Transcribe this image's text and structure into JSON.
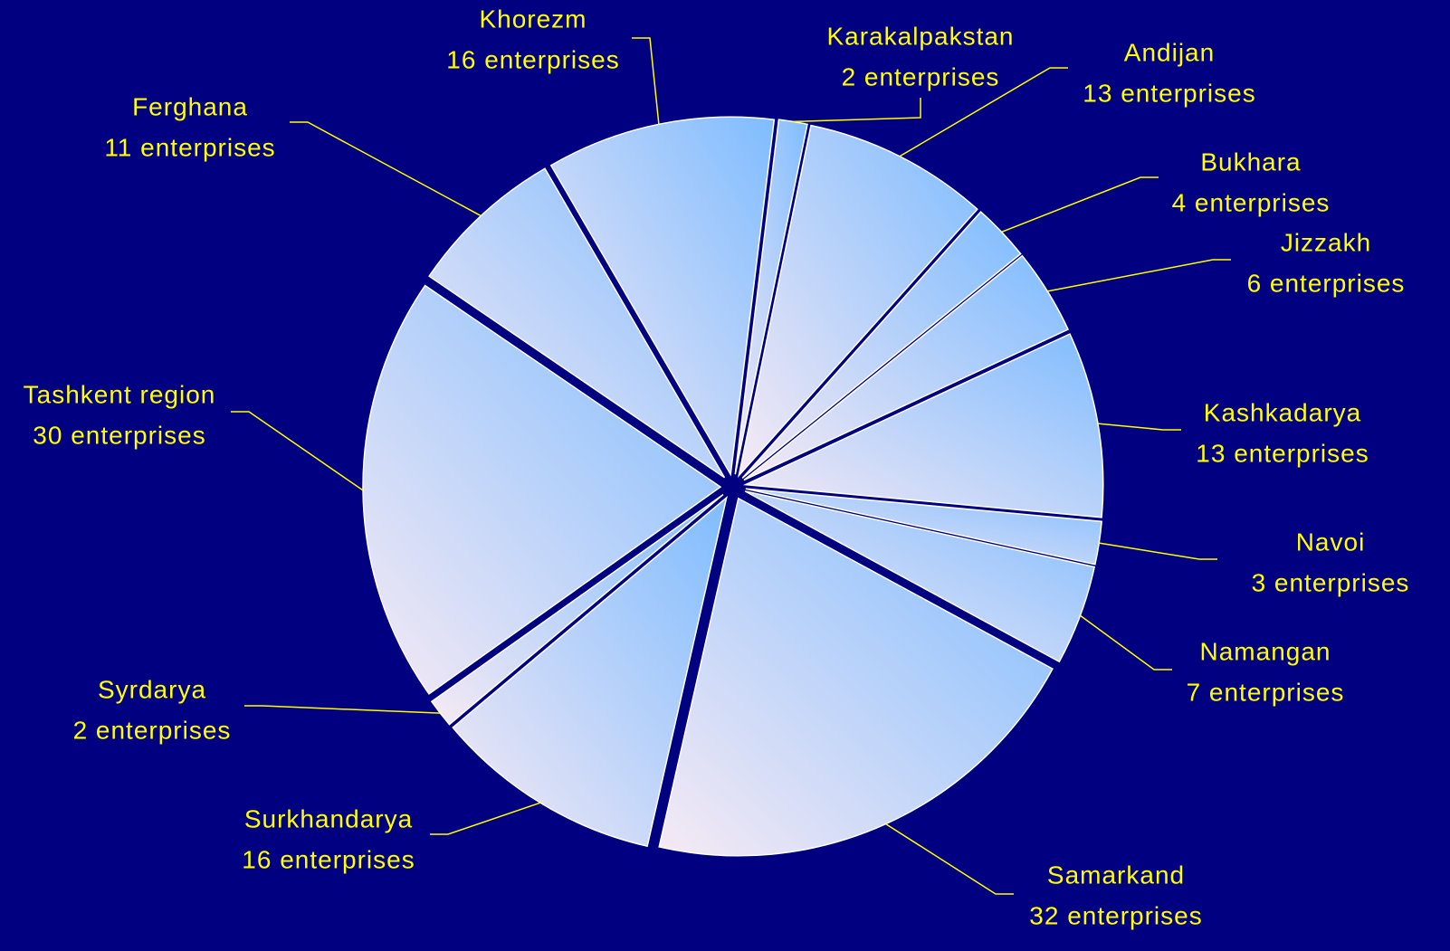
{
  "chart_data": {
    "type": "pie",
    "categories": [
      "Karakalpakstan",
      "Andijan",
      "Bukhara",
      "Jizzakh",
      "Kashkadarya",
      "Navoi",
      "Namangan",
      "Samarkand",
      "Surkhandarya",
      "Syrdarya",
      "Tashkent region",
      "Ferghana",
      "Khorezm"
    ],
    "values": [
      2,
      13,
      4,
      6,
      13,
      3,
      7,
      32,
      16,
      2,
      30,
      11,
      16
    ],
    "value_labels": [
      "2 enterprises",
      "13 enterprises",
      "4 enterprises",
      "6 enterprises",
      "13 enterprises",
      "3 enterprises",
      "7 enterprises",
      "32 enterprises",
      "16 enterprises",
      "2 enterprises",
      "30 enterprises",
      "11 enterprises",
      "16 enterprises"
    ],
    "color": "#7fbcff"
  }
}
